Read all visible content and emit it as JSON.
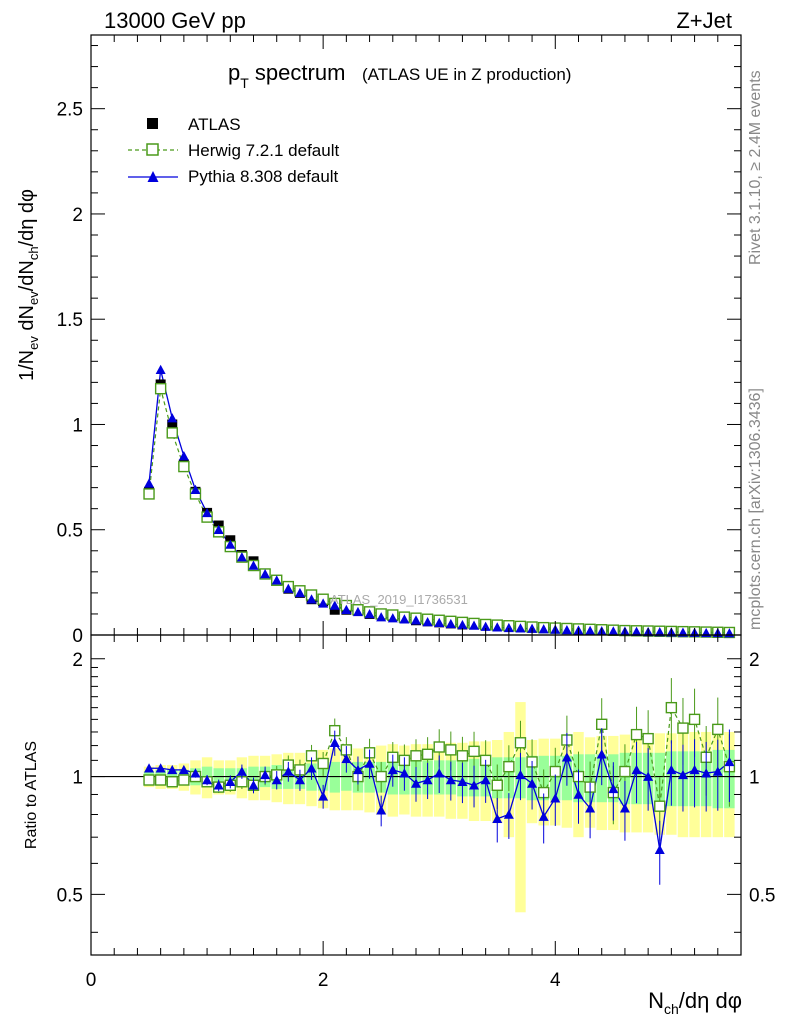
{
  "header": {
    "left": "13000 GeV pp",
    "right": "Z+Jet"
  },
  "side_text": {
    "rivet": "Rivet 3.1.10, ≥ 2.4M events",
    "mcplots": "mcplots.cern.ch [arXiv:1306.3436]"
  },
  "watermark": "ATLAS_2019_I1736531",
  "chart_data": [
    {
      "type": "scatter",
      "panel": "main",
      "title_main": "p",
      "title_sub": "T",
      "title_rest": " spectrum",
      "title_paren": "(ATLAS UE in Z production)",
      "ylabel": "1/N_ev dN_ev/dN_ch/dη dφ",
      "ylim": [
        0,
        2.85
      ],
      "yticks": [
        0,
        0.5,
        1,
        1.5,
        2,
        2.5
      ],
      "ytick_labels": [
        "0",
        "0.5",
        "1",
        "1.5",
        "2",
        "2.5"
      ],
      "xlim": [
        0,
        5.6
      ],
      "legend_placement": "top-left",
      "x": [
        0.5,
        0.6,
        0.7,
        0.8,
        0.9,
        1.0,
        1.1,
        1.2,
        1.3,
        1.4,
        1.5,
        1.6,
        1.7,
        1.8,
        1.9,
        2.0,
        2.1,
        2.2,
        2.3,
        2.4,
        2.5,
        2.6,
        2.7,
        2.8,
        2.9,
        3.0,
        3.1,
        3.2,
        3.3,
        3.4,
        3.5,
        3.6,
        3.7,
        3.8,
        3.9,
        4.0,
        4.1,
        4.2,
        4.3,
        4.4,
        4.5,
        4.6,
        4.7,
        4.8,
        4.9,
        5.0,
        5.1,
        5.2,
        5.3,
        5.4,
        5.5
      ],
      "series": [
        {
          "name": "ATLAS",
          "color": "#000000",
          "marker": "filled-square",
          "values": [
            0.68,
            1.19,
            1.0,
            0.81,
            0.68,
            0.58,
            0.52,
            0.45,
            0.38,
            0.35,
            0.29,
            0.26,
            0.22,
            0.2,
            0.17,
            0.16,
            0.12,
            0.12,
            0.12,
            0.1,
            0.1,
            0.09,
            0.08,
            0.07,
            0.065,
            0.06,
            0.055,
            0.05,
            0.05,
            0.045,
            0.05,
            0.045,
            0.04,
            0.035,
            0.035,
            0.035,
            0.03,
            0.025,
            0.025,
            0.022,
            0.02,
            0.02,
            0.018,
            0.016,
            0.015,
            0.014,
            0.013,
            0.012,
            0.012,
            0.011,
            0.01
          ]
        },
        {
          "name": "Herwig 7.2.1 default",
          "color": "#4a9a1a",
          "marker": "open-square",
          "line": "dashed",
          "values": [
            0.67,
            1.17,
            0.96,
            0.8,
            0.67,
            0.56,
            0.49,
            0.42,
            0.37,
            0.33,
            0.29,
            0.26,
            0.23,
            0.21,
            0.19,
            0.17,
            0.15,
            0.14,
            0.12,
            0.11,
            0.1,
            0.095,
            0.085,
            0.08,
            0.075,
            0.07,
            0.065,
            0.06,
            0.055,
            0.05,
            0.047,
            0.044,
            0.041,
            0.038,
            0.035,
            0.033,
            0.031,
            0.029,
            0.027,
            0.025,
            0.023,
            0.021,
            0.02,
            0.019,
            0.018,
            0.017,
            0.016,
            0.015,
            0.014,
            0.013,
            0.012
          ]
        },
        {
          "name": "Pythia 8.308 default",
          "color": "#0000dd",
          "marker": "filled-triangle",
          "line": "solid",
          "values": [
            0.72,
            1.26,
            1.03,
            0.85,
            0.69,
            0.58,
            0.5,
            0.43,
            0.37,
            0.33,
            0.29,
            0.26,
            0.22,
            0.2,
            0.17,
            0.15,
            0.14,
            0.12,
            0.11,
            0.1,
            0.085,
            0.08,
            0.075,
            0.07,
            0.062,
            0.058,
            0.053,
            0.048,
            0.045,
            0.04,
            0.037,
            0.034,
            0.032,
            0.03,
            0.028,
            0.026,
            0.024,
            0.022,
            0.02,
            0.019,
            0.018,
            0.017,
            0.016,
            0.015,
            0.014,
            0.013,
            0.012,
            0.011,
            0.01,
            0.01,
            0.009
          ]
        }
      ]
    },
    {
      "type": "scatter",
      "panel": "ratio",
      "ylabel": "Ratio to ATLAS",
      "ylim": [
        0.35,
        2.3
      ],
      "yticks": [
        0.5,
        1,
        2
      ],
      "ytick_labels": [
        "0.5",
        "1",
        "2"
      ],
      "xlim": [
        0,
        5.6
      ],
      "xticks": [
        0,
        2,
        4
      ],
      "xtick_labels": [
        "0",
        "2",
        "4"
      ],
      "xlabel": "N_ch/dη dφ",
      "reference_line": 1,
      "x": [
        0.5,
        0.6,
        0.7,
        0.8,
        0.9,
        1.0,
        1.1,
        1.2,
        1.3,
        1.4,
        1.5,
        1.6,
        1.7,
        1.8,
        1.9,
        2.0,
        2.1,
        2.2,
        2.3,
        2.4,
        2.5,
        2.6,
        2.7,
        2.8,
        2.9,
        3.0,
        3.1,
        3.2,
        3.3,
        3.4,
        3.5,
        3.6,
        3.7,
        3.8,
        3.9,
        4.0,
        4.1,
        4.2,
        4.3,
        4.4,
        4.5,
        4.6,
        4.7,
        4.8,
        4.9,
        5.0,
        5.1,
        5.2,
        5.3,
        5.4,
        5.5
      ],
      "band_stat": {
        "color": "#99ff99",
        "halfwidth": [
          0.03,
          0.04,
          0.04,
          0.04,
          0.05,
          0.06,
          0.05,
          0.05,
          0.05,
          0.06,
          0.06,
          0.07,
          0.07,
          0.07,
          0.08,
          0.08,
          0.09,
          0.08,
          0.09,
          0.09,
          0.09,
          0.1,
          0.1,
          0.1,
          0.1,
          0.1,
          0.1,
          0.11,
          0.11,
          0.11,
          0.12,
          0.12,
          0.12,
          0.13,
          0.13,
          0.13,
          0.13,
          0.14,
          0.14,
          0.14,
          0.14,
          0.15,
          0.15,
          0.15,
          0.15,
          0.16,
          0.16,
          0.16,
          0.16,
          0.17,
          0.17
        ]
      },
      "band_total": {
        "color": "#ffff99",
        "halfwidth": [
          0.06,
          0.07,
          0.07,
          0.08,
          0.1,
          0.12,
          0.1,
          0.1,
          0.12,
          0.13,
          0.13,
          0.14,
          0.15,
          0.15,
          0.16,
          0.17,
          0.18,
          0.18,
          0.18,
          0.19,
          0.2,
          0.21,
          0.2,
          0.21,
          0.21,
          0.21,
          0.22,
          0.22,
          0.23,
          0.23,
          0.24,
          0.3,
          0.55,
          0.24,
          0.25,
          0.25,
          0.26,
          0.3,
          0.26,
          0.27,
          0.27,
          0.28,
          0.28,
          0.28,
          0.29,
          0.29,
          0.3,
          0.3,
          0.3,
          0.3,
          0.3
        ]
      },
      "series": [
        {
          "name": "Herwig 7.2.1 default",
          "color": "#4a9a1a",
          "marker": "open-square",
          "line": "dashed",
          "values": [
            0.98,
            0.98,
            0.97,
            0.98,
            1.0,
            0.97,
            0.94,
            0.95,
            0.97,
            0.95,
            1.0,
            1.01,
            1.07,
            1.04,
            1.13,
            1.08,
            1.31,
            1.17,
            1.0,
            1.15,
            1.0,
            1.12,
            1.1,
            1.13,
            1.14,
            1.19,
            1.17,
            1.13,
            1.16,
            1.1,
            0.95,
            1.06,
            1.22,
            1.09,
            0.91,
            1.03,
            1.24,
            1.0,
            0.94,
            1.36,
            0.91,
            1.03,
            1.28,
            1.25,
            0.84,
            1.5,
            1.33,
            1.4,
            1.12,
            1.32,
            1.06
          ]
        },
        {
          "name": "Pythia 8.308 default",
          "color": "#0000dd",
          "marker": "filled-triangle",
          "line": "solid",
          "values": [
            1.05,
            1.05,
            1.04,
            1.04,
            1.02,
            0.98,
            0.95,
            0.97,
            1.03,
            0.95,
            1.01,
            0.98,
            1.03,
            0.98,
            1.05,
            0.89,
            1.22,
            1.11,
            1.04,
            1.08,
            0.82,
            1.04,
            1.02,
            0.96,
            0.98,
            1.02,
            0.98,
            0.97,
            0.95,
            0.98,
            0.78,
            0.8,
            1.01,
            0.96,
            0.79,
            0.88,
            1.12,
            0.9,
            0.83,
            1.14,
            0.93,
            0.83,
            1.04,
            1.0,
            0.65,
            1.04,
            1.01,
            1.04,
            1.02,
            1.03,
            1.09
          ]
        }
      ]
    }
  ]
}
